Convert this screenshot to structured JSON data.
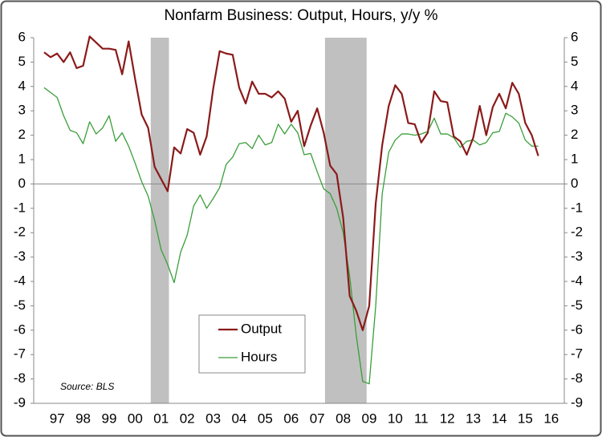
{
  "chart_data": {
    "type": "line",
    "title": "Nonfarm Business:  Output, Hours, y/y %",
    "annotation": "Source: BLS",
    "x": [
      1997,
      1997.25,
      1997.5,
      1997.75,
      1998,
      1998.25,
      1998.5,
      1998.75,
      1999,
      1999.25,
      1999.5,
      1999.75,
      2000,
      2000.25,
      2000.5,
      2000.75,
      2001,
      2001.25,
      2001.5,
      2001.75,
      2002,
      2002.25,
      2002.5,
      2002.75,
      2003,
      2003.25,
      2003.5,
      2003.75,
      2004,
      2004.25,
      2004.5,
      2004.75,
      2005,
      2005.25,
      2005.5,
      2005.75,
      2006,
      2006.25,
      2006.5,
      2006.75,
      2007,
      2007.25,
      2007.5,
      2007.75,
      2008,
      2008.25,
      2008.5,
      2008.75,
      2009,
      2009.25,
      2009.5,
      2009.75,
      2010,
      2010.25,
      2010.5,
      2010.75,
      2011,
      2011.25,
      2011.5,
      2011.75,
      2012,
      2012.25,
      2012.5,
      2012.75,
      2013,
      2013.25,
      2013.5,
      2013.75,
      2014,
      2014.25,
      2014.5,
      2014.75,
      2015,
      2015.25,
      2015.5,
      2015.75,
      2016
    ],
    "series": [
      {
        "name": "Output",
        "color": "#8b1a1a",
        "values": [
          5.4,
          5.2,
          5.35,
          5.0,
          5.4,
          4.75,
          4.85,
          6.05,
          5.8,
          5.55,
          5.55,
          5.5,
          4.5,
          5.85,
          4.3,
          2.85,
          2.3,
          0.7,
          0.2,
          -0.3,
          1.5,
          1.25,
          2.25,
          2.1,
          1.2,
          1.95,
          3.9,
          5.45,
          5.35,
          5.3,
          3.95,
          3.3,
          4.2,
          3.7,
          3.7,
          3.55,
          3.8,
          3.5,
          2.55,
          3.0,
          1.55,
          2.4,
          3.1,
          2.1,
          0.75,
          0.4,
          -1.4,
          -4.6,
          -5.2,
          -6.0,
          -5.0,
          -0.8,
          1.6,
          3.2,
          4.05,
          3.7,
          2.5,
          2.45,
          1.7,
          2.1,
          3.8,
          3.4,
          3.35,
          1.95,
          1.75,
          1.2,
          1.9,
          3.2,
          2.0,
          3.15,
          3.7,
          3.1,
          4.15,
          3.7,
          2.5,
          2.0,
          1.15
        ]
      },
      {
        "name": "Hours",
        "color": "#3a9e3a",
        "values": [
          3.95,
          3.75,
          3.55,
          2.8,
          2.2,
          2.1,
          1.65,
          2.55,
          2.05,
          2.3,
          2.8,
          1.75,
          2.1,
          1.55,
          0.85,
          0.1,
          -0.5,
          -1.5,
          -2.7,
          -3.3,
          -4.05,
          -2.8,
          -2.1,
          -0.9,
          -0.45,
          -1.0,
          -0.6,
          -0.15,
          0.8,
          1.1,
          1.65,
          1.7,
          1.45,
          2.0,
          1.6,
          1.7,
          2.45,
          2.05,
          2.45,
          2.1,
          1.2,
          1.25,
          0.5,
          -0.2,
          -0.4,
          -1.0,
          -2.0,
          -3.8,
          -6.2,
          -8.1,
          -8.2,
          -5.0,
          -0.4,
          1.3,
          1.8,
          2.05,
          2.05,
          2.0,
          2.05,
          2.15,
          2.7,
          2.05,
          2.05,
          1.9,
          1.5,
          1.75,
          1.8,
          1.6,
          1.7,
          2.1,
          2.15,
          2.9,
          2.75,
          2.5,
          1.8,
          1.55,
          1.55
        ]
      }
    ],
    "recessions": [
      [
        2001.1,
        2001.8
      ],
      [
        2007.8,
        2009.4
      ]
    ],
    "recession_color": "#c0c0c0",
    "xlim": [
      1996.6,
      2017.0
    ],
    "xticks": [
      {
        "value": 1997.5,
        "label": "97"
      },
      {
        "value": 1998.5,
        "label": "98"
      },
      {
        "value": 1999.5,
        "label": "99"
      },
      {
        "value": 2000.5,
        "label": "00"
      },
      {
        "value": 2001.5,
        "label": "01"
      },
      {
        "value": 2002.5,
        "label": "02"
      },
      {
        "value": 2003.5,
        "label": "03"
      },
      {
        "value": 2004.5,
        "label": "04"
      },
      {
        "value": 2005.5,
        "label": "05"
      },
      {
        "value": 2006.5,
        "label": "06"
      },
      {
        "value": 2007.5,
        "label": "07"
      },
      {
        "value": 2008.5,
        "label": "08"
      },
      {
        "value": 2009.5,
        "label": "09"
      },
      {
        "value": 2010.5,
        "label": "10"
      },
      {
        "value": 2011.5,
        "label": "11"
      },
      {
        "value": 2012.5,
        "label": "12"
      },
      {
        "value": 2013.5,
        "label": "13"
      },
      {
        "value": 2014.5,
        "label": "14"
      },
      {
        "value": 2015.5,
        "label": "15"
      },
      {
        "value": 2016.5,
        "label": "16"
      }
    ],
    "ylim": [
      -9,
      6
    ],
    "yticks": [
      -9,
      -8,
      -7,
      -6,
      -5,
      -4,
      -3,
      -2,
      -1,
      0,
      1,
      2,
      3,
      4,
      5,
      6
    ],
    "y2lim": [
      -9,
      6
    ],
    "y2ticks": [
      -9,
      -8,
      -7,
      -6,
      -5,
      -4,
      -3,
      -2,
      -1,
      0,
      1,
      2,
      3,
      4,
      5,
      6
    ],
    "grid": false
  }
}
